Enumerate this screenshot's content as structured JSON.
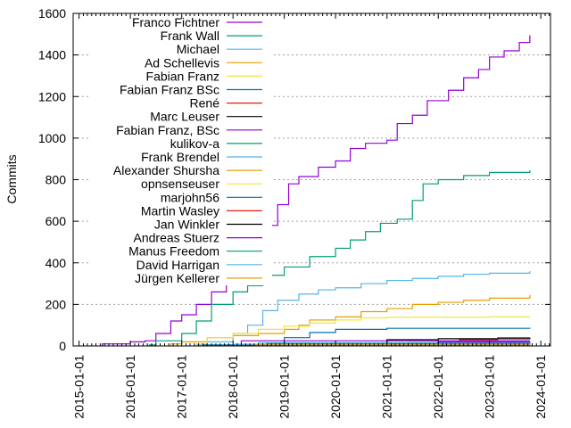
{
  "chart_data": {
    "type": "line",
    "step": true,
    "title": "",
    "xlabel": "",
    "ylabel": "Commits",
    "xlim": [
      "2014-11-20",
      "2024-03-10"
    ],
    "ylim": [
      0,
      1600
    ],
    "yticks": [
      0,
      200,
      400,
      600,
      800,
      1000,
      1200,
      1400,
      1600
    ],
    "xticks": [
      "2015-01-01",
      "2016-01-01",
      "2017-01-01",
      "2018-01-01",
      "2019-01-01",
      "2020-01-01",
      "2021-01-01",
      "2022-01-01",
      "2023-01-01",
      "2024-01-01"
    ],
    "grid": "horizontal dashed",
    "legend": "top-left",
    "series": [
      {
        "name": "Franco Fichtner",
        "color": "#9400d3",
        "points": [
          [
            "2015-06-15",
            10
          ],
          [
            "2016-01-01",
            20
          ],
          [
            "2016-04-15",
            25
          ],
          [
            "2016-07-01",
            60
          ],
          [
            "2016-10-15",
            120
          ],
          [
            "2017-01-01",
            150
          ],
          [
            "2017-04-15",
            200
          ],
          [
            "2017-08-01",
            260
          ],
          [
            "2017-11-15",
            330
          ],
          [
            "2018-01-01",
            380
          ],
          [
            "2018-04-15",
            470
          ],
          [
            "2018-08-01",
            580
          ],
          [
            "2018-11-15",
            680
          ],
          [
            "2019-02-01",
            780
          ],
          [
            "2019-04-15",
            815
          ],
          [
            "2019-09-01",
            860
          ],
          [
            "2020-01-01",
            890
          ],
          [
            "2020-04-15",
            950
          ],
          [
            "2020-08-01",
            975
          ],
          [
            "2021-01-01",
            990
          ],
          [
            "2021-03-15",
            1070
          ],
          [
            "2021-07-01",
            1110
          ],
          [
            "2021-10-15",
            1180
          ],
          [
            "2022-03-15",
            1230
          ],
          [
            "2022-07-01",
            1290
          ],
          [
            "2022-10-15",
            1330
          ],
          [
            "2023-01-01",
            1390
          ],
          [
            "2023-04-15",
            1420
          ],
          [
            "2023-08-01",
            1460
          ],
          [
            "2023-10-15",
            1495
          ]
        ]
      },
      {
        "name": "Frank Wall",
        "color": "#009e73",
        "points": [
          [
            "2016-05-15",
            5
          ],
          [
            "2016-07-01",
            25
          ],
          [
            "2017-01-01",
            60
          ],
          [
            "2017-04-15",
            120
          ],
          [
            "2017-08-01",
            200
          ],
          [
            "2018-01-01",
            260
          ],
          [
            "2018-04-15",
            290
          ],
          [
            "2018-08-01",
            340
          ],
          [
            "2019-01-01",
            380
          ],
          [
            "2019-07-01",
            430
          ],
          [
            "2020-01-01",
            470
          ],
          [
            "2020-04-15",
            510
          ],
          [
            "2020-08-01",
            550
          ],
          [
            "2020-11-15",
            590
          ],
          [
            "2021-03-15",
            610
          ],
          [
            "2021-07-01",
            700
          ],
          [
            "2021-09-15",
            780
          ],
          [
            "2022-01-01",
            800
          ],
          [
            "2022-07-01",
            820
          ],
          [
            "2023-01-01",
            835
          ],
          [
            "2023-10-15",
            845
          ]
        ]
      },
      {
        "name": "Michael",
        "color": "#56b4e9",
        "points": [
          [
            "2017-04-15",
            5
          ],
          [
            "2017-07-01",
            20
          ],
          [
            "2018-01-01",
            60
          ],
          [
            "2018-04-15",
            100
          ],
          [
            "2018-08-01",
            170
          ],
          [
            "2018-11-15",
            220
          ],
          [
            "2019-04-15",
            250
          ],
          [
            "2019-09-01",
            270
          ],
          [
            "2020-01-01",
            280
          ],
          [
            "2020-07-01",
            300
          ],
          [
            "2021-01-01",
            315
          ],
          [
            "2021-07-01",
            325
          ],
          [
            "2022-01-01",
            335
          ],
          [
            "2022-07-01",
            345
          ],
          [
            "2023-01-01",
            350
          ],
          [
            "2023-10-15",
            360
          ]
        ]
      },
      {
        "name": "Ad Schellevis",
        "color": "#e69f00",
        "points": [
          [
            "2016-10-15",
            10
          ],
          [
            "2017-01-01",
            20
          ],
          [
            "2017-07-01",
            40
          ],
          [
            "2018-01-01",
            50
          ],
          [
            "2018-07-01",
            60
          ],
          [
            "2019-01-01",
            80
          ],
          [
            "2019-04-15",
            100
          ],
          [
            "2019-07-01",
            125
          ],
          [
            "2020-01-01",
            140
          ],
          [
            "2020-07-01",
            165
          ],
          [
            "2021-01-01",
            180
          ],
          [
            "2021-07-01",
            200
          ],
          [
            "2022-01-01",
            210
          ],
          [
            "2022-07-01",
            220
          ],
          [
            "2023-01-01",
            230
          ],
          [
            "2023-10-15",
            245
          ]
        ]
      },
      {
        "name": "Fabian Franz",
        "color": "#f0e442",
        "points": [
          [
            "2017-04-15",
            10
          ],
          [
            "2017-07-01",
            40
          ],
          [
            "2018-01-01",
            60
          ],
          [
            "2018-07-01",
            80
          ],
          [
            "2019-01-01",
            95
          ],
          [
            "2019-07-01",
            110
          ],
          [
            "2020-01-01",
            125
          ],
          [
            "2020-07-01",
            135
          ],
          [
            "2021-01-01",
            138
          ],
          [
            "2023-01-01",
            140
          ],
          [
            "2023-10-15",
            140
          ]
        ]
      },
      {
        "name": "Fabian Franz BSc",
        "color": "#0072b2",
        "points": [
          [
            "2018-07-01",
            5
          ],
          [
            "2018-09-15",
            10
          ],
          [
            "2019-01-01",
            40
          ],
          [
            "2019-07-01",
            65
          ],
          [
            "2020-01-01",
            80
          ],
          [
            "2021-01-01",
            85
          ],
          [
            "2023-10-15",
            88
          ]
        ]
      },
      {
        "name": "René",
        "color": "#e51e10",
        "points": [
          [
            "2017-09-01",
            2
          ],
          [
            "2019-03-01",
            8
          ],
          [
            "2021-06-01",
            15
          ],
          [
            "2022-06-01",
            30
          ],
          [
            "2023-03-01",
            40
          ],
          [
            "2023-10-15",
            42
          ]
        ]
      },
      {
        "name": "Marc Leuser",
        "color": "#000000",
        "points": [
          [
            "2021-01-01",
            30
          ],
          [
            "2022-01-01",
            35
          ],
          [
            "2023-10-15",
            38
          ]
        ]
      },
      {
        "name": "Fabian Franz, BSc",
        "color": "#9400d3",
        "points": [
          [
            "2017-12-01",
            5
          ],
          [
            "2018-03-01",
            25
          ],
          [
            "2023-10-15",
            25
          ]
        ]
      },
      {
        "name": "kulikov-a",
        "color": "#009e73",
        "points": [
          [
            "2020-01-01",
            2
          ],
          [
            "2020-12-01",
            8
          ],
          [
            "2021-06-01",
            15
          ],
          [
            "2023-10-15",
            15
          ]
        ]
      },
      {
        "name": "Frank Brendel",
        "color": "#56b4e9",
        "points": [
          [
            "2017-06-01",
            3
          ],
          [
            "2018-07-01",
            15
          ],
          [
            "2023-10-15",
            20
          ]
        ]
      },
      {
        "name": "Alexander Shursha",
        "color": "#e69f00",
        "points": [
          [
            "2020-03-01",
            5
          ],
          [
            "2021-06-01",
            10
          ],
          [
            "2023-10-15",
            12
          ]
        ]
      },
      {
        "name": "opnsenseuser",
        "color": "#f0e442",
        "points": [
          [
            "2018-06-01",
            3
          ],
          [
            "2019-06-01",
            6
          ],
          [
            "2023-10-15",
            8
          ]
        ]
      },
      {
        "name": "marjohn56",
        "color": "#0072b2",
        "points": [
          [
            "2017-06-01",
            5
          ],
          [
            "2018-09-01",
            12
          ],
          [
            "2023-10-15",
            14
          ]
        ]
      },
      {
        "name": "Martin Wasley",
        "color": "#e51e10",
        "points": [
          [
            "2018-03-01",
            3
          ],
          [
            "2019-01-01",
            5
          ],
          [
            "2023-10-15",
            6
          ]
        ]
      },
      {
        "name": "Jan Winkler",
        "color": "#000000",
        "points": [
          [
            "2022-06-01",
            3
          ],
          [
            "2023-10-15",
            5
          ]
        ]
      },
      {
        "name": "Andreas Stuerz",
        "color": "#9400d3",
        "points": [
          [
            "2021-01-01",
            10
          ],
          [
            "2022-01-01",
            20
          ],
          [
            "2023-10-15",
            22
          ]
        ]
      },
      {
        "name": "Manus Freedom",
        "color": "#009e73",
        "points": [
          [
            "2020-12-01",
            2
          ],
          [
            "2021-06-01",
            4
          ],
          [
            "2023-10-15",
            4
          ]
        ]
      },
      {
        "name": "David Harrigan",
        "color": "#56b4e9",
        "points": [
          [
            "2018-01-01",
            8
          ],
          [
            "2023-10-15",
            10
          ]
        ]
      },
      {
        "name": "Jürgen Kellerer",
        "color": "#e69f00",
        "points": [
          [
            "2018-06-01",
            5
          ],
          [
            "2023-10-15",
            7
          ]
        ]
      }
    ]
  }
}
